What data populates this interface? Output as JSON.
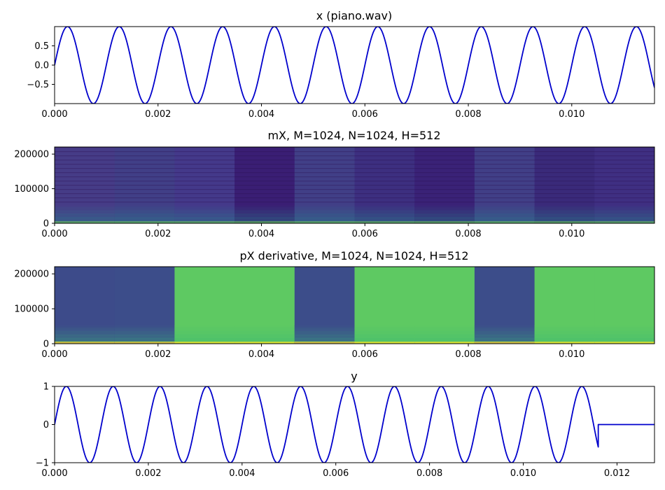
{
  "chart_data": [
    {
      "type": "line",
      "title": "x (piano.wav)",
      "xlabel": "",
      "ylabel": "",
      "xlim": [
        0,
        0.0116
      ],
      "ylim": [
        -1,
        1
      ],
      "xticks": [
        "0.000",
        "0.002",
        "0.004",
        "0.006",
        "0.008",
        "0.010"
      ],
      "yticks": [
        "0.5",
        "0.0",
        "−0.5"
      ],
      "series": [
        {
          "color": "#0000cc",
          "signal": "sine",
          "frequency_hz": 1000,
          "amplitude": 1.0,
          "x_start": 0,
          "x_end": 0.0116,
          "hold_after": null
        }
      ]
    },
    {
      "type": "heatmap",
      "title": "mX, M=1024, N=1024, H=512",
      "xlabel": "",
      "ylabel": "",
      "xlim": [
        0,
        0.0116
      ],
      "ylim": [
        0,
        220500
      ],
      "xticks": [
        "0.000",
        "0.002",
        "0.004",
        "0.006",
        "0.008",
        "0.010"
      ],
      "yticks": [
        "0",
        "100000",
        "200000"
      ],
      "frame_boundaries": [
        0,
        0.00116,
        0.00232,
        0.00348,
        0.00464,
        0.0058,
        0.00696,
        0.00812,
        0.00928,
        0.01044,
        0.0116
      ],
      "frame_colors": [
        "#463c87",
        "#413f87",
        "#44398a",
        "#3a1e74",
        "#413f87",
        "#3d2f80",
        "#3a2277",
        "#413f87",
        "#3a2a7a",
        "#3f2f82"
      ]
    },
    {
      "type": "heatmap",
      "title": "pX derivative, M=1024, N=1024, H=512",
      "xlabel": "",
      "ylabel": "",
      "xlim": [
        0,
        0.0116
      ],
      "ylim": [
        0,
        220500
      ],
      "xticks": [
        "0.000",
        "0.002",
        "0.004",
        "0.006",
        "0.008",
        "0.010"
      ],
      "yticks": [
        "0",
        "100000",
        "200000"
      ],
      "frame_boundaries": [
        0,
        0.00116,
        0.00232,
        0.00348,
        0.00464,
        0.0058,
        0.00696,
        0.00812,
        0.00928,
        0.01044,
        0.0116
      ],
      "frame_colors": [
        "#3d4b8a",
        "#3c4d8a",
        "#5ec962",
        "#5ec962",
        "#3c4d8a",
        "#5ec962",
        "#5ec962",
        "#3c4d8a",
        "#5ec962",
        "#5ec962"
      ]
    },
    {
      "type": "line",
      "title": "y",
      "xlabel": "",
      "ylabel": "",
      "xlim": [
        0,
        0.0128
      ],
      "ylim": [
        -1,
        1
      ],
      "xticks": [
        "0.000",
        "0.002",
        "0.004",
        "0.006",
        "0.008",
        "0.010",
        "0.012"
      ],
      "yticks": [
        "1",
        "0",
        "−1"
      ],
      "series": [
        {
          "color": "#0000cc",
          "signal": "sine",
          "frequency_hz": 1000,
          "amplitude": 1.0,
          "x_start": 0,
          "x_end": 0.0116,
          "hold_after": 0
        }
      ]
    }
  ]
}
